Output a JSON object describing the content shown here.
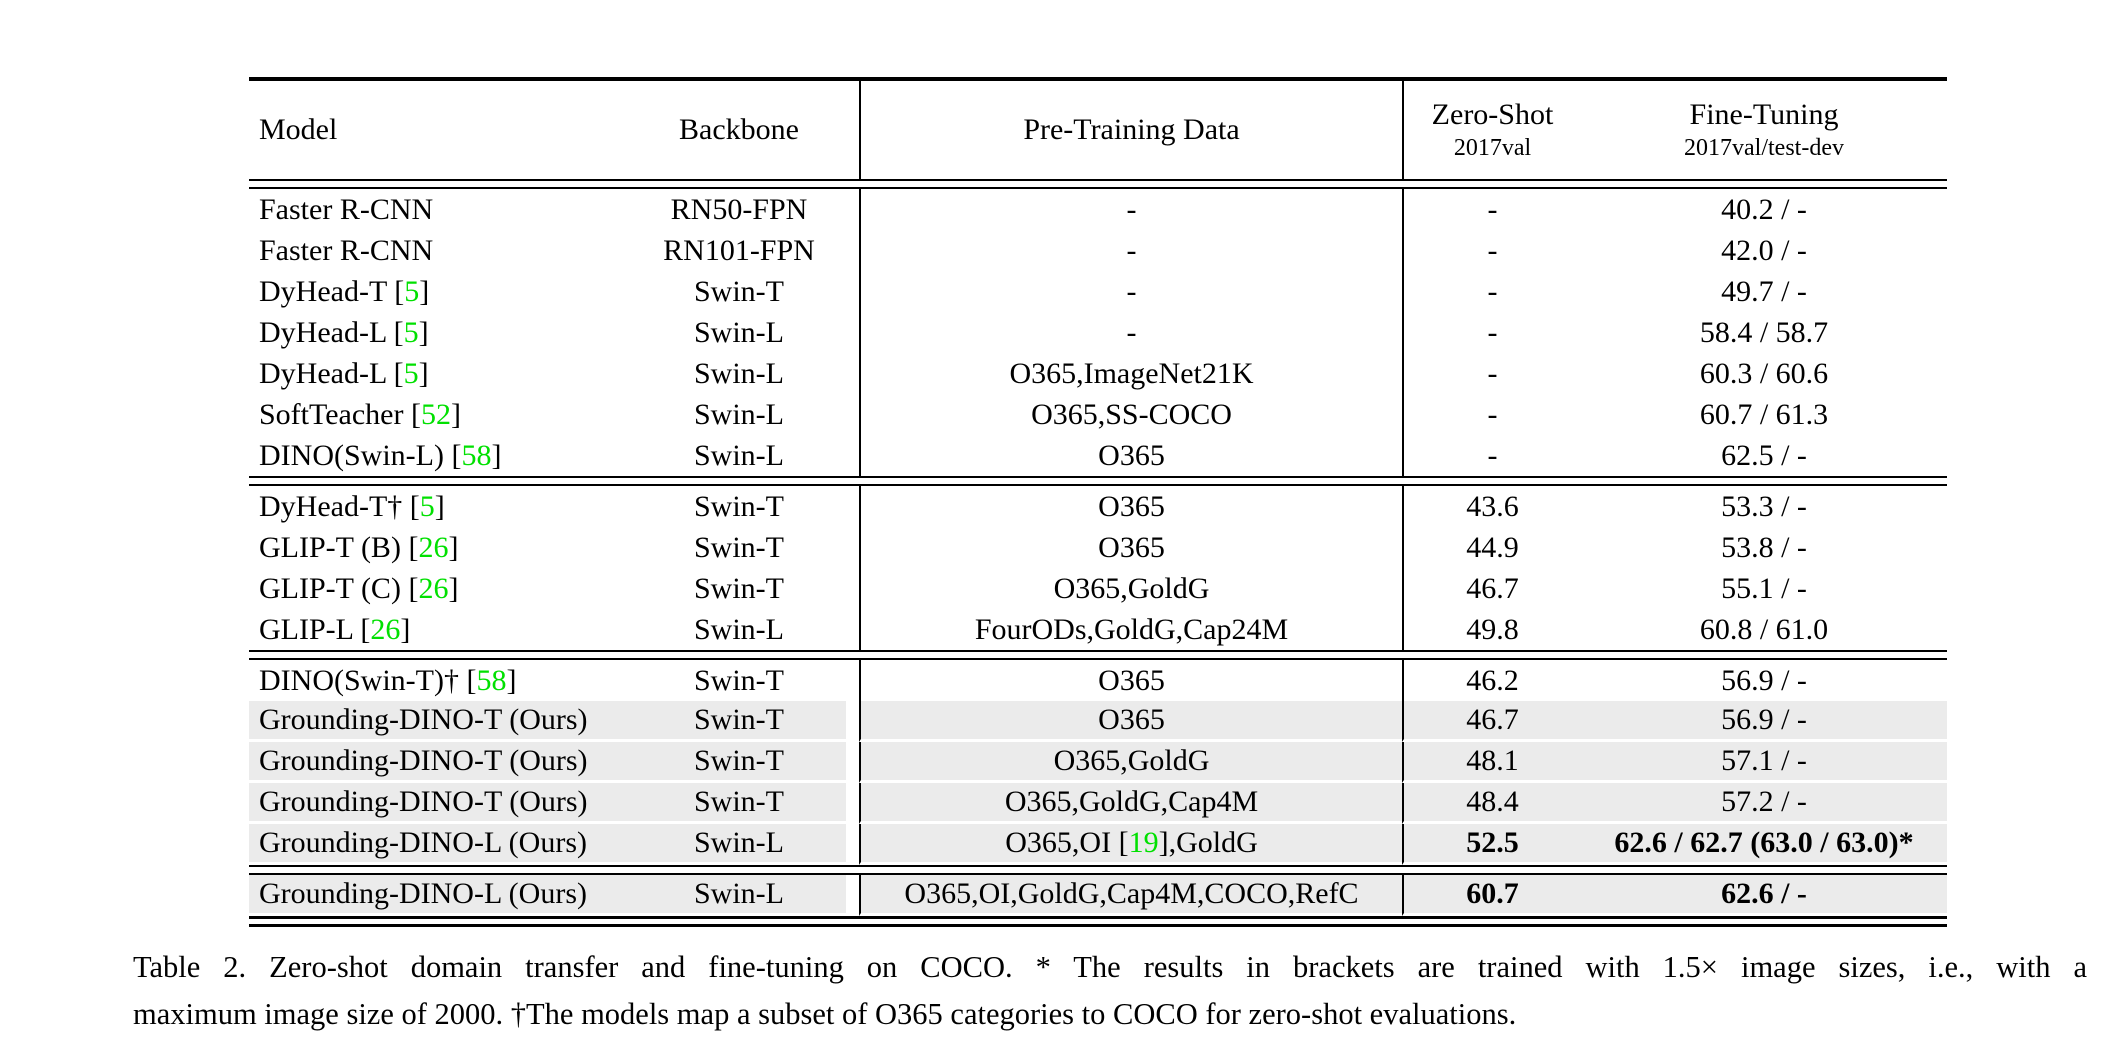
{
  "colors": {
    "citation_green": "#00e000",
    "highlight_gray": "#ebebeb",
    "text": "#000000",
    "background": "#ffffff"
  },
  "table": {
    "columns": {
      "model": "Model",
      "backbone": "Backbone",
      "pretrain": "Pre-Training Data",
      "zero_shot_line1": "Zero-Shot",
      "zero_shot_line2": "2017val",
      "fine_tune_line1": "Fine-Tuning",
      "fine_tune_line2": "2017val/test-dev"
    },
    "sections": [
      {
        "rows": [
          {
            "model": "Faster R-CNN",
            "cite": "",
            "backbone": "RN50-FPN",
            "pretrain_pre": "-",
            "pretrain_cite": "",
            "pretrain_post": "",
            "zero_shot": "-",
            "fine_tune": "40.2 / -",
            "bold": false,
            "highlight": false
          },
          {
            "model": "Faster R-CNN",
            "cite": "",
            "backbone": "RN101-FPN",
            "pretrain_pre": "-",
            "pretrain_cite": "",
            "pretrain_post": "",
            "zero_shot": "-",
            "fine_tune": "42.0 / -",
            "bold": false,
            "highlight": false
          },
          {
            "model": "DyHead-T",
            "cite": "5",
            "backbone": "Swin-T",
            "pretrain_pre": "-",
            "pretrain_cite": "",
            "pretrain_post": "",
            "zero_shot": "-",
            "fine_tune": "49.7 / -",
            "bold": false,
            "highlight": false
          },
          {
            "model": "DyHead-L",
            "cite": "5",
            "backbone": "Swin-L",
            "pretrain_pre": "-",
            "pretrain_cite": "",
            "pretrain_post": "",
            "zero_shot": "-",
            "fine_tune": "58.4 / 58.7",
            "bold": false,
            "highlight": false
          },
          {
            "model": "DyHead-L",
            "cite": "5",
            "backbone": "Swin-L",
            "pretrain_pre": "O365,ImageNet21K",
            "pretrain_cite": "",
            "pretrain_post": "",
            "zero_shot": "-",
            "fine_tune": "60.3 / 60.6",
            "bold": false,
            "highlight": false
          },
          {
            "model": "SoftTeacher",
            "cite": "52",
            "backbone": "Swin-L",
            "pretrain_pre": "O365,SS-COCO",
            "pretrain_cite": "",
            "pretrain_post": "",
            "zero_shot": "-",
            "fine_tune": "60.7 / 61.3",
            "bold": false,
            "highlight": false
          },
          {
            "model": "DINO(Swin-L)",
            "cite": "58",
            "backbone": "Swin-L",
            "pretrain_pre": "O365",
            "pretrain_cite": "",
            "pretrain_post": "",
            "zero_shot": "-",
            "fine_tune": "62.5 / -",
            "bold": false,
            "highlight": false
          }
        ]
      },
      {
        "rows": [
          {
            "model": "DyHead-T†",
            "cite": "5",
            "backbone": "Swin-T",
            "pretrain_pre": "O365",
            "pretrain_cite": "",
            "pretrain_post": "",
            "zero_shot": "43.6",
            "fine_tune": "53.3 / -",
            "bold": false,
            "highlight": false
          },
          {
            "model": "GLIP-T (B)",
            "cite": "26",
            "backbone": "Swin-T",
            "pretrain_pre": "O365",
            "pretrain_cite": "",
            "pretrain_post": "",
            "zero_shot": "44.9",
            "fine_tune": "53.8 / -",
            "bold": false,
            "highlight": false
          },
          {
            "model": "GLIP-T (C)",
            "cite": "26",
            "backbone": "Swin-T",
            "pretrain_pre": "O365,GoldG",
            "pretrain_cite": "",
            "pretrain_post": "",
            "zero_shot": "46.7",
            "fine_tune": "55.1 / -",
            "bold": false,
            "highlight": false
          },
          {
            "model": "GLIP-L",
            "cite": "26",
            "backbone": "Swin-L",
            "pretrain_pre": "FourODs,GoldG,Cap24M",
            "pretrain_cite": "",
            "pretrain_post": "",
            "zero_shot": "49.8",
            "fine_tune": "60.8 / 61.0",
            "bold": false,
            "highlight": false
          }
        ]
      },
      {
        "rows": [
          {
            "model": "DINO(Swin-T)†",
            "cite": "58",
            "backbone": "Swin-T",
            "pretrain_pre": "O365",
            "pretrain_cite": "",
            "pretrain_post": "",
            "zero_shot": "46.2",
            "fine_tune": "56.9 / -",
            "bold": false,
            "highlight": false
          },
          {
            "model": "Grounding-DINO-T (Ours)",
            "cite": "",
            "backbone": "Swin-T",
            "pretrain_pre": "O365",
            "pretrain_cite": "",
            "pretrain_post": "",
            "zero_shot": "46.7",
            "fine_tune": "56.9 / -",
            "bold": false,
            "highlight": true
          },
          {
            "model": "Grounding-DINO-T (Ours)",
            "cite": "",
            "backbone": "Swin-T",
            "pretrain_pre": "O365,GoldG",
            "pretrain_cite": "",
            "pretrain_post": "",
            "zero_shot": "48.1",
            "fine_tune": "57.1 / -",
            "bold": false,
            "highlight": true
          },
          {
            "model": "Grounding-DINO-T (Ours)",
            "cite": "",
            "backbone": "Swin-T",
            "pretrain_pre": "O365,GoldG,Cap4M",
            "pretrain_cite": "",
            "pretrain_post": "",
            "zero_shot": "48.4",
            "fine_tune": "57.2 / -",
            "bold": false,
            "highlight": true
          },
          {
            "model": "Grounding-DINO-L (Ours)",
            "cite": "",
            "backbone": "Swin-L",
            "pretrain_pre": "O365,OI [",
            "pretrain_cite": "19",
            "pretrain_post": "],GoldG",
            "zero_shot": "52.5",
            "fine_tune": "62.6 / 62.7 (63.0 / 63.0)*",
            "bold": true,
            "highlight": true
          }
        ]
      },
      {
        "rows": [
          {
            "model": "Grounding-DINO-L (Ours)",
            "cite": "",
            "backbone": "Swin-L",
            "pretrain_pre": "O365,OI,GoldG,Cap4M,COCO,RefC",
            "pretrain_cite": "",
            "pretrain_post": "",
            "zero_shot": "60.7",
            "fine_tune": "62.6 / -",
            "bold": true,
            "highlight": true
          }
        ]
      }
    ]
  },
  "caption": {
    "line1": "Table 2. Zero-shot domain transfer and fine-tuning on COCO. * The results in brackets are trained with 1.5× image sizes, i.e., with a",
    "line2": "maximum image size of 2000. †The models map a subset of O365 categories to COCO for zero-shot evaluations."
  }
}
